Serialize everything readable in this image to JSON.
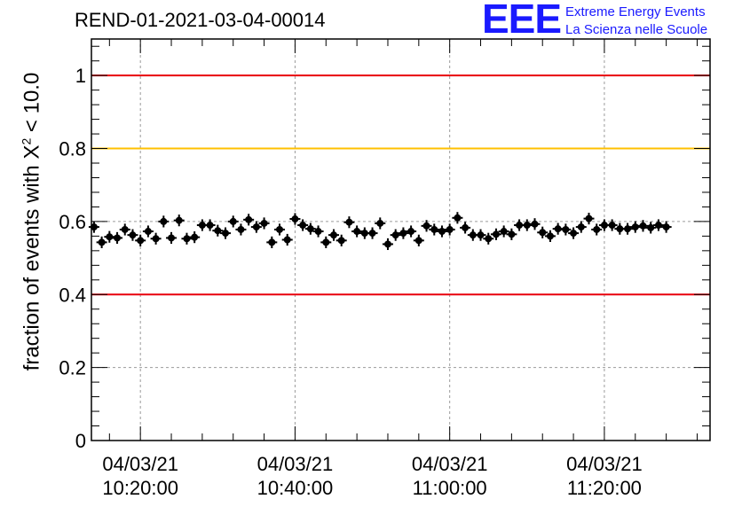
{
  "chart_data": {
    "type": "scatter",
    "title": "REND-01-2021-03-04-00014",
    "ylabel_main": "fraction of events with ",
    "ylabel_symbol": "X",
    "ylabel_power": "2",
    "ylabel_tail": " < 10.0",
    "ylim": [
      0,
      1.1
    ],
    "yticks": [
      {
        "value": 0,
        "label": "0"
      },
      {
        "value": 0.2,
        "label": "0.2"
      },
      {
        "value": 0.4,
        "label": "0.4"
      },
      {
        "value": 0.6,
        "label": "0.6"
      },
      {
        "value": 0.8,
        "label": "0.8"
      },
      {
        "value": 1,
        "label": "1"
      }
    ],
    "xlim": [
      "10:13:40",
      "11:33:40"
    ],
    "xticks": [
      {
        "time": "10:20:00",
        "date_label": "04/03/21",
        "time_label": "10:20:00"
      },
      {
        "time": "10:40:00",
        "date_label": "04/03/21",
        "time_label": "10:40:00"
      },
      {
        "time": "11:00:00",
        "date_label": "04/03/21",
        "time_label": "11:00:00"
      },
      {
        "time": "11:20:00",
        "date_label": "04/03/21",
        "time_label": "11:20:00"
      }
    ],
    "grid": true,
    "reference_lines": [
      {
        "y": 1.0,
        "color": "#e8000b"
      },
      {
        "y": 0.8,
        "color": "#ffc000"
      },
      {
        "y": 0.4,
        "color": "#e8000b"
      }
    ],
    "point_color": "#000000",
    "series": [
      {
        "x": [
          "10:14:00",
          "10:15:00",
          "10:16:00",
          "10:17:00",
          "10:18:00",
          "10:19:00",
          "10:20:00",
          "10:21:00",
          "10:22:00",
          "10:23:00",
          "10:24:00",
          "10:25:00",
          "10:26:00",
          "10:27:00",
          "10:28:00",
          "10:29:00",
          "10:30:00",
          "10:31:00",
          "10:32:00",
          "10:33:00",
          "10:34:00",
          "10:35:00",
          "10:36:00",
          "10:37:00",
          "10:38:00",
          "10:39:00",
          "10:40:00",
          "10:41:00",
          "10:42:00",
          "10:43:00",
          "10:44:00",
          "10:45:00",
          "10:46:00",
          "10:47:00",
          "10:48:00",
          "10:49:00",
          "10:50:00",
          "10:51:00",
          "10:52:00",
          "10:53:00",
          "10:54:00",
          "10:55:00",
          "10:56:00",
          "10:57:00",
          "10:58:00",
          "10:59:00",
          "11:00:00",
          "11:01:00",
          "11:02:00",
          "11:03:00",
          "11:04:00",
          "11:05:00",
          "11:06:00",
          "11:07:00",
          "11:08:00",
          "11:09:00",
          "11:10:00",
          "11:11:00",
          "11:12:00",
          "11:13:00",
          "11:14:00",
          "11:15:00",
          "11:16:00",
          "11:17:00",
          "11:18:00",
          "11:19:00",
          "11:20:00",
          "11:21:00",
          "11:22:00",
          "11:23:00",
          "11:24:00",
          "11:25:00",
          "11:26:00",
          "11:27:00",
          "11:28:00"
        ],
        "y": [
          0.585,
          0.543,
          0.558,
          0.555,
          0.578,
          0.563,
          0.548,
          0.573,
          0.553,
          0.6,
          0.555,
          0.603,
          0.553,
          0.557,
          0.59,
          0.59,
          0.575,
          0.568,
          0.6,
          0.578,
          0.605,
          0.585,
          0.595,
          0.543,
          0.578,
          0.55,
          0.607,
          0.59,
          0.58,
          0.573,
          0.543,
          0.563,
          0.548,
          0.598,
          0.573,
          0.568,
          0.568,
          0.595,
          0.538,
          0.563,
          0.568,
          0.573,
          0.548,
          0.588,
          0.578,
          0.573,
          0.578,
          0.61,
          0.583,
          0.563,
          0.563,
          0.553,
          0.565,
          0.573,
          0.565,
          0.59,
          0.59,
          0.593,
          0.57,
          0.56,
          0.58,
          0.578,
          0.568,
          0.585,
          0.608,
          0.578,
          0.59,
          0.59,
          0.58,
          0.58,
          0.585,
          0.588,
          0.583,
          0.59,
          0.585
        ],
        "err": 0.016
      }
    ]
  },
  "logo": {
    "mark": "EEE",
    "line1": "Extreme Energy Events",
    "line2": "La Scienza nelle Scuole"
  }
}
